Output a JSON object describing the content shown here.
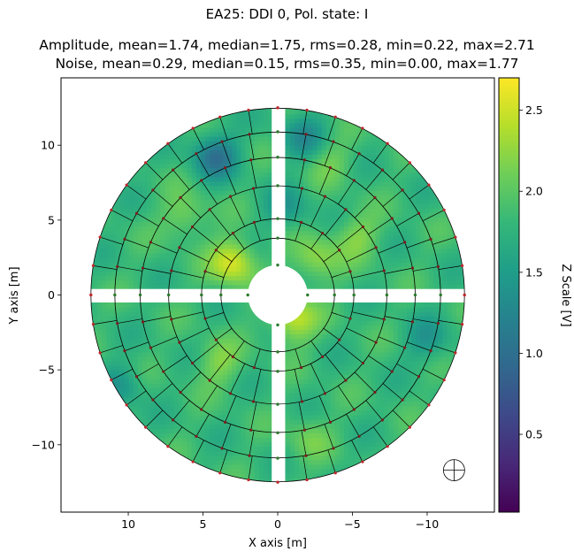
{
  "figure": {
    "suptitle": "EA25: DDI 0, Pol. state: I",
    "stats_amplitude": "Amplitude, mean=1.74, median=1.75, rms=0.28, min=0.22, max=2.71",
    "stats_noise": "Noise, mean=0.29, median=0.15, rms=0.35, min=0.00, max=1.77"
  },
  "chart_data": {
    "type": "heatmap",
    "xlabel": "X axis [m]",
    "ylabel": "Y axis [m]",
    "xlim": [
      14.5,
      -14.5
    ],
    "ylim": [
      -14.5,
      14.5
    ],
    "x_ticks": [
      10,
      5,
      0,
      -5,
      -10
    ],
    "x_tick_labels": [
      "10",
      "5",
      "0",
      "−5",
      "−10"
    ],
    "y_ticks": [
      10,
      5,
      0,
      -5,
      -10
    ],
    "y_tick_labels": [
      "10",
      "5",
      "0",
      "−5",
      "−10"
    ],
    "colorbar": {
      "label": "Z Scale [V]",
      "range": [
        0.02,
        2.7
      ],
      "ticks": [
        0.5,
        1.0,
        1.5,
        2.0,
        2.5
      ],
      "tick_labels": [
        "0.5",
        "1.0",
        "1.5",
        "2.0",
        "2.5"
      ],
      "colormap": [
        "#440154",
        "#482878",
        "#3e4989",
        "#31688e",
        "#26828e",
        "#1f9e89",
        "#35b779",
        "#6ece58",
        "#b5de2b",
        "#fde725"
      ]
    },
    "dish": {
      "outer_radius": 12.5,
      "inner_radius": 2.0,
      "ring_radii": [
        3.8,
        5.1,
        7.3,
        9.2,
        10.9
      ],
      "segments_per_quadrant": [
        5,
        7,
        8,
        9,
        10
      ],
      "strut_half_width": 0.4
    },
    "high_spots": [
      [
        -1.0,
        -1.6,
        2.5
      ],
      [
        3.0,
        2.2,
        2.6
      ],
      [
        -2.5,
        2.4,
        2.3
      ],
      [
        -5.3,
        4.0,
        2.2
      ],
      [
        -3.5,
        9.0,
        2.1
      ],
      [
        -2.0,
        -9.5,
        2.1
      ],
      [
        4.0,
        -4.5,
        2.2
      ],
      [
        6.2,
        5.3,
        2.2
      ]
    ],
    "low_spots": [
      [
        4.2,
        9.3,
        1.1
      ],
      [
        -1.7,
        10.6,
        1.4
      ],
      [
        -0.6,
        5.8,
        1.5
      ],
      [
        -10.0,
        -3.0,
        1.5
      ],
      [
        10.5,
        -6.0,
        1.5
      ]
    ],
    "marker_symbol_position": [
      -11.8,
      -11.7
    ]
  }
}
